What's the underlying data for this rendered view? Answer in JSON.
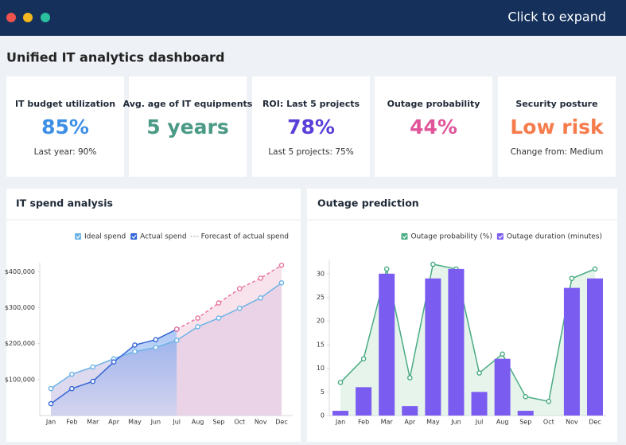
{
  "header": {
    "action": "Click to expand"
  },
  "title": "Unified IT analytics dashboard",
  "kpis": [
    {
      "label": "IT budget utilization",
      "value": "85%",
      "note": "Last year: 90%",
      "color": "#3d8fe6"
    },
    {
      "label": "Avg. age of IT equipments",
      "value": "5 years",
      "note": "",
      "color": "#4a9a86"
    },
    {
      "label": "ROI: Last 5 projects",
      "value": "78%",
      "note": "Last 5 projects: 75%",
      "color": "#5b3fd8"
    },
    {
      "label": "Outage probability",
      "value": "44%",
      "note": "",
      "color": "#e0559a"
    },
    {
      "label": "Security posture",
      "value": "Low risk",
      "note": "Change from: Medium",
      "color": "#f57c4c"
    }
  ],
  "chart_data": [
    {
      "type": "line",
      "title": "IT spend analysis",
      "categories": [
        "Jan",
        "Feb",
        "Mar",
        "Apr",
        "May",
        "Jun",
        "Jul",
        "Aug",
        "Sep",
        "Oct",
        "Nov",
        "Dec"
      ],
      "series": [
        {
          "name": "Ideal spend",
          "color": "#6bb3e6",
          "area_color": "#c7bfe4",
          "values": [
            75000,
            115000,
            135000,
            158000,
            178000,
            189000,
            209000,
            247000,
            271000,
            298000,
            327000,
            369000
          ]
        },
        {
          "name": "Actual spend",
          "color": "#3566d6",
          "area_color": "url(#gb)",
          "values": [
            33000,
            75000,
            95000,
            149000,
            196000,
            211000,
            240000,
            null,
            null,
            null,
            null,
            null
          ]
        },
        {
          "name": "Forecast of actual spend",
          "color": "#e8769f",
          "area_color": "#f4cfe0",
          "line_style": "dashed",
          "values": [
            null,
            null,
            null,
            null,
            null,
            null,
            240000,
            271000,
            313000,
            353000,
            382000,
            418000
          ]
        }
      ],
      "ylim": [
        0,
        425000
      ],
      "yticks": [
        {
          "value": 100000,
          "label": "$100,000"
        },
        {
          "value": 200000,
          "label": "$200,000"
        },
        {
          "value": 300000,
          "label": "$300,000"
        },
        {
          "value": 400000,
          "label": "$400,000"
        }
      ]
    },
    {
      "type": "bar",
      "title": "Outage prediction",
      "categories": [
        "Jan",
        "Feb",
        "Mar",
        "Apr",
        "May",
        "Jun",
        "Jul",
        "Aug",
        "Sep",
        "Oct",
        "Nov",
        "Dec"
      ],
      "series": [
        {
          "name": "Outage probability (%)",
          "type": "area",
          "color": "#4aab84",
          "area_color": "#d6ecde",
          "values": [
            7,
            12,
            31,
            8,
            32,
            31,
            9,
            13,
            4,
            3,
            29,
            31
          ]
        },
        {
          "name": "Outage duration (minutes)",
          "type": "bar",
          "color": "#7b5cf0",
          "values": [
            1,
            6,
            30,
            2,
            29,
            31,
            5,
            12,
            1,
            0,
            27,
            29
          ]
        }
      ],
      "ylim": [
        0,
        33
      ],
      "yticks": [
        0,
        5,
        10,
        15,
        20,
        25,
        30
      ]
    }
  ]
}
